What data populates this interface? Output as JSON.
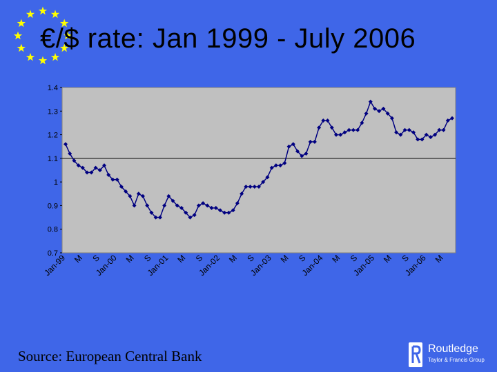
{
  "slide": {
    "title": "€/$ rate:  Jan 1999 - July 2006",
    "source": "Source: European Central Bank",
    "background_color": "#3F66E8",
    "eu_flag_icon": "eu-stars-icon",
    "star_color": "#FFFF00"
  },
  "publisher": {
    "icon": "routledge-r-icon",
    "name": "Routledge",
    "subtitle": "Taylor & Francis Group"
  },
  "chart_data": {
    "type": "line",
    "title": "",
    "xlabel": "",
    "ylabel": "",
    "ylim": [
      0.7,
      1.4
    ],
    "y_ticks": [
      "0.7",
      "0.8",
      "0.9",
      "1",
      "1.1",
      "1.2",
      "1.3",
      "1.4"
    ],
    "reference_line": 1.1,
    "x_tick_labels": [
      "Jan-99",
      "M",
      "S",
      "Jan-00",
      "M",
      "S",
      "Jan-01",
      "M",
      "S",
      "Jan-02",
      "M",
      "S",
      "Jan-03",
      "M",
      "S",
      "Jan-04",
      "M",
      "S",
      "Jan-05",
      "M",
      "S",
      "Jan-06",
      "M"
    ],
    "grid": false,
    "plot_background": "#C0C0C0",
    "line_color": "#000080",
    "series": [
      {
        "values": [
          1.16,
          1.12,
          1.09,
          1.07,
          1.06,
          1.04,
          1.04,
          1.06,
          1.05,
          1.07,
          1.03,
          1.01,
          1.01,
          0.98,
          0.96,
          0.94,
          0.9,
          0.95,
          0.94,
          0.9,
          0.87,
          0.85,
          0.85,
          0.9,
          0.94,
          0.92,
          0.9,
          0.89,
          0.87,
          0.85,
          0.86,
          0.9,
          0.91,
          0.9,
          0.89,
          0.89,
          0.88,
          0.87,
          0.87,
          0.88,
          0.91,
          0.95,
          0.98,
          0.98,
          0.98,
          0.98,
          1.0,
          1.02,
          1.06,
          1.07,
          1.07,
          1.08,
          1.15,
          1.16,
          1.13,
          1.11,
          1.12,
          1.17,
          1.17,
          1.23,
          1.26,
          1.26,
          1.23,
          1.2,
          1.2,
          1.21,
          1.22,
          1.22,
          1.22,
          1.25,
          1.29,
          1.34,
          1.31,
          1.3,
          1.31,
          1.29,
          1.27,
          1.21,
          1.2,
          1.22,
          1.22,
          1.21,
          1.18,
          1.18,
          1.2,
          1.19,
          1.2,
          1.22,
          1.22,
          1.26,
          1.27
        ]
      }
    ]
  }
}
